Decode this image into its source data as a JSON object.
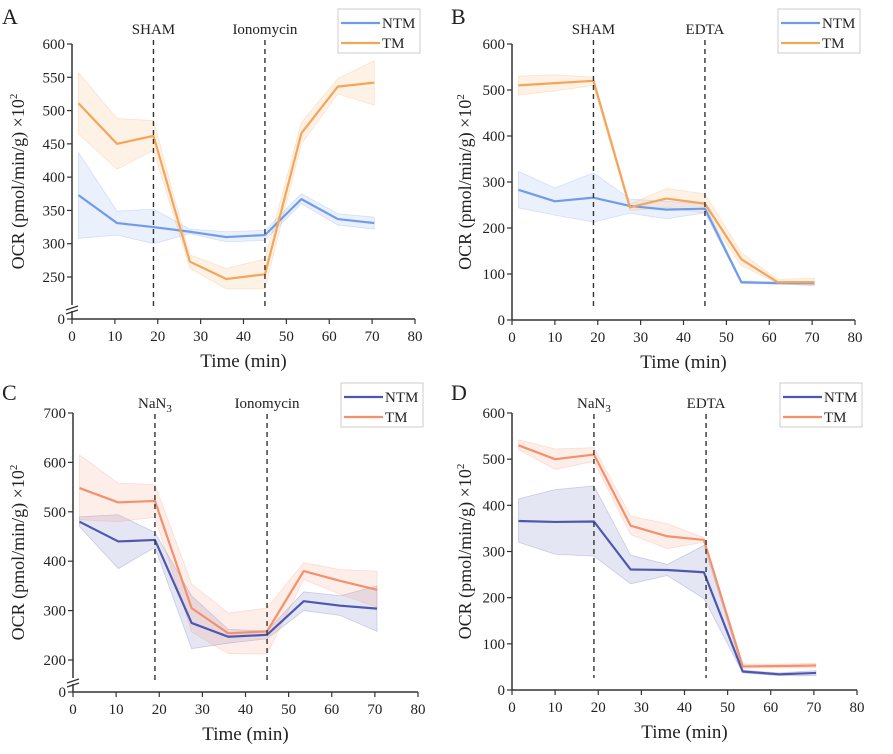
{
  "chart_data": [
    {
      "panel": "A",
      "type": "line",
      "xlabel": "Time (min)",
      "ylabel": "OCR (pmol/min/g)  ×10²",
      "xlim": [
        0,
        80
      ],
      "xticks": [
        0,
        10,
        20,
        30,
        40,
        50,
        60,
        70,
        80
      ],
      "ylim": [
        200,
        600
      ],
      "yticks": [
        250,
        300,
        350,
        400,
        450,
        500,
        550,
        600
      ],
      "axis_break": true,
      "zero_label": "0",
      "markers": [
        {
          "x": 19,
          "label": "SHAM"
        },
        {
          "x": 45,
          "label": "Ionomycin"
        }
      ],
      "legend_position": "top-right",
      "x": [
        1.5,
        10.5,
        19,
        27.5,
        36,
        45,
        53.5,
        62,
        70.5
      ],
      "series": [
        {
          "name": "NTM",
          "color": "#6f9cea",
          "values": [
            373,
            331,
            325,
            318,
            310,
            313,
            367,
            337,
            331
          ],
          "lower": [
            308,
            313,
            300,
            315,
            303,
            305,
            360,
            328,
            322
          ],
          "upper": [
            437,
            349,
            352,
            322,
            318,
            320,
            375,
            345,
            340
          ]
        },
        {
          "name": "TM",
          "color": "#f5a55a",
          "values": [
            511,
            450,
            462,
            273,
            247,
            254,
            466,
            536,
            542
          ],
          "lower": [
            465,
            412,
            440,
            263,
            232,
            232,
            450,
            525,
            508
          ],
          "upper": [
            557,
            488,
            485,
            283,
            263,
            277,
            482,
            548,
            575
          ]
        }
      ]
    },
    {
      "panel": "B",
      "type": "line",
      "xlabel": "Time (min)",
      "ylabel": "OCR (pmol/min/g)  ×10²",
      "xlim": [
        0,
        80
      ],
      "xticks": [
        0,
        10,
        20,
        30,
        40,
        50,
        60,
        70,
        80
      ],
      "ylim": [
        0,
        600
      ],
      "yticks": [
        0,
        100,
        200,
        300,
        400,
        500,
        600
      ],
      "axis_break": false,
      "markers": [
        {
          "x": 19,
          "label": "SHAM"
        },
        {
          "x": 45,
          "label": "EDTA"
        }
      ],
      "legend_position": "top-right",
      "x": [
        1.5,
        10,
        19,
        27.5,
        36,
        45,
        53.5,
        62,
        70.5
      ],
      "series": [
        {
          "name": "NTM",
          "color": "#6f9cea",
          "values": [
            283,
            258,
            266,
            248,
            240,
            242,
            82,
            80,
            80
          ],
          "lower": [
            244,
            228,
            213,
            232,
            220,
            233,
            79,
            78,
            76
          ],
          "upper": [
            323,
            287,
            320,
            263,
            258,
            252,
            85,
            83,
            84
          ]
        },
        {
          "name": "TM",
          "color": "#f5a55a",
          "values": [
            510,
            515,
            520,
            245,
            264,
            253,
            132,
            82,
            82
          ],
          "lower": [
            489,
            498,
            510,
            238,
            245,
            232,
            118,
            79,
            74
          ],
          "upper": [
            530,
            533,
            528,
            252,
            286,
            274,
            146,
            88,
            91
          ]
        }
      ]
    },
    {
      "panel": "C",
      "type": "line",
      "xlabel": "Time (min)",
      "ylabel": "OCR (pmol/min/g)  ×10²",
      "xlim": [
        0,
        80
      ],
      "xticks": [
        0,
        10,
        20,
        30,
        40,
        50,
        60,
        70,
        80
      ],
      "ylim": [
        150,
        700
      ],
      "yticks": [
        200,
        300,
        400,
        500,
        600,
        700
      ],
      "axis_break": true,
      "zero_label": "0",
      "markers": [
        {
          "x": 19,
          "label": "NaN₃"
        },
        {
          "x": 45,
          "label": "Ionomycin"
        }
      ],
      "legend_position": "top-right",
      "x": [
        1.5,
        10.5,
        19,
        27.5,
        36,
        45,
        53.5,
        62,
        70.5
      ],
      "series": [
        {
          "name": "NTM",
          "color": "#4e57b0",
          "values": [
            480,
            440,
            443,
            275,
            247,
            251,
            319,
            310,
            304
          ],
          "lower": [
            470,
            385,
            428,
            223,
            234,
            243,
            300,
            290,
            258
          ],
          "upper": [
            490,
            494,
            458,
            330,
            262,
            259,
            338,
            330,
            350
          ]
        },
        {
          "name": "TM",
          "color": "#f5906a",
          "values": [
            548,
            519,
            522,
            305,
            254,
            258,
            380,
            360,
            342
          ],
          "lower": [
            484,
            480,
            489,
            257,
            213,
            212,
            363,
            333,
            307
          ],
          "upper": [
            615,
            558,
            555,
            354,
            295,
            305,
            397,
            383,
            380
          ]
        }
      ]
    },
    {
      "panel": "D",
      "type": "line",
      "xlabel": "Time (min)",
      "ylabel": "OCR (pmol/min/g)  ×10²",
      "xlim": [
        0,
        80
      ],
      "xticks": [
        0,
        10,
        20,
        30,
        40,
        50,
        60,
        70,
        80
      ],
      "ylim": [
        0,
        600
      ],
      "yticks": [
        0,
        100,
        200,
        300,
        400,
        500,
        600
      ],
      "axis_break": false,
      "markers": [
        {
          "x": 19,
          "label": "NaN₃"
        },
        {
          "x": 45,
          "label": "EDTA"
        }
      ],
      "legend_position": "top-right",
      "x": [
        1.5,
        10,
        19,
        27.5,
        36,
        44.5,
        53.5,
        62,
        70.5
      ],
      "series": [
        {
          "name": "NTM",
          "color": "#4e57b0",
          "values": [
            366,
            364,
            365,
            261,
            260,
            255,
            40,
            34,
            37
          ],
          "lower": [
            320,
            294,
            290,
            230,
            248,
            198,
            37,
            31,
            31
          ],
          "upper": [
            414,
            434,
            442,
            292,
            272,
            313,
            43,
            37,
            42
          ]
        },
        {
          "name": "TM",
          "color": "#f5906a",
          "values": [
            530,
            500,
            510,
            356,
            333,
            325,
            51,
            52,
            53
          ],
          "lower": [
            521,
            478,
            495,
            337,
            306,
            320,
            47,
            48,
            48
          ],
          "upper": [
            542,
            522,
            525,
            377,
            360,
            330,
            56,
            56,
            58
          ]
        }
      ]
    }
  ]
}
